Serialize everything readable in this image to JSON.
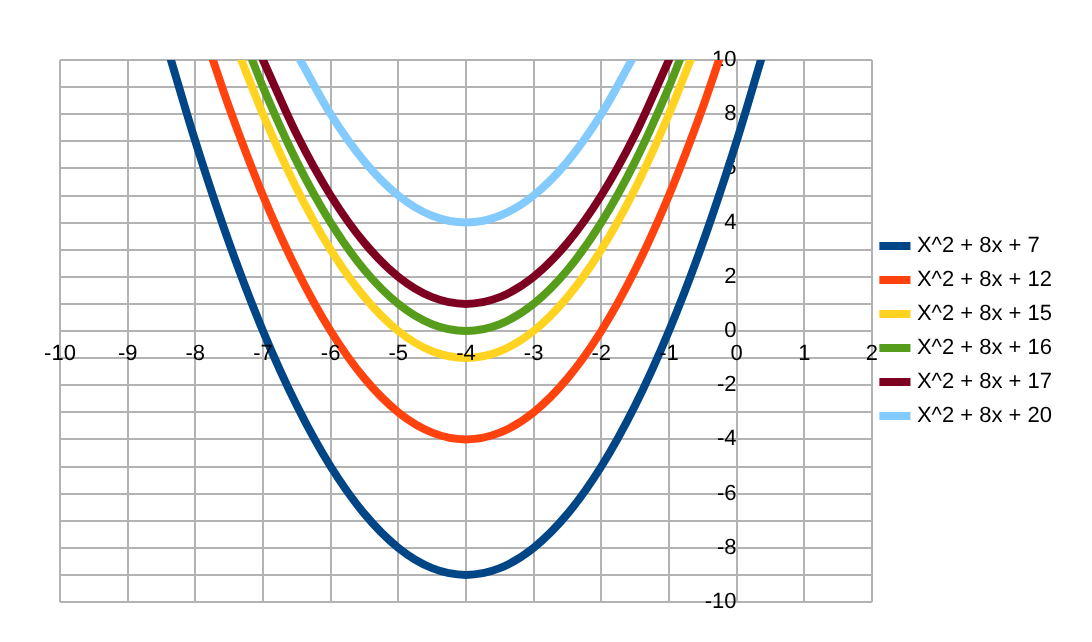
{
  "chart_data": {
    "type": "line",
    "xlim": [
      -10,
      2
    ],
    "xticks": [
      -10,
      -9,
      -8,
      -7,
      -6,
      -5,
      -4,
      -3,
      -2,
      -1,
      0,
      1,
      2
    ],
    "ylim": [
      -10,
      10
    ],
    "yticks": [
      -10,
      {
        "value": -9,
        "label": null
      },
      -8,
      {
        "value": -7,
        "label": null
      },
      -6,
      {
        "value": -5,
        "label": null
      },
      -4,
      {
        "value": -3,
        "label": null
      },
      -2,
      {
        "value": -1,
        "label": null
      },
      0,
      {
        "value": 1,
        "label": null
      },
      2,
      {
        "value": 3,
        "label": null
      },
      4,
      {
        "value": 5,
        "label": null
      },
      6,
      {
        "value": 7,
        "label": null
      },
      8,
      {
        "value": 9,
        "label": null
      },
      10
    ],
    "grid": true,
    "legend": "right",
    "marker": "none",
    "line_style": "solid",
    "series": [
      {
        "name": "X^2 + 8x + 7",
        "color": "#004586",
        "x": [
          -8.36,
          -8,
          -7.5,
          -7,
          -6.5,
          -6,
          -5.5,
          -5,
          -4.5,
          -4,
          -3.5,
          -3,
          -2.5,
          -2,
          -1.5,
          -1,
          -0.5,
          0,
          0.36
        ],
        "values": [
          10,
          7,
          3.25,
          0,
          -2.75,
          -5,
          -6.75,
          -8,
          -8.75,
          -9,
          -8.75,
          -8,
          -6.75,
          -5,
          -2.75,
          0,
          3.25,
          7,
          10
        ]
      },
      {
        "name": "X^2 + 8x + 12",
        "color": "#ff420e",
        "x": [
          -7.74,
          -7.5,
          -7,
          -6.5,
          -6,
          -5.5,
          -5,
          -4.5,
          -4,
          -3.5,
          -3,
          -2.5,
          -2,
          -1.5,
          -1,
          -0.5,
          -0.26
        ],
        "values": [
          10,
          8.25,
          5,
          2.25,
          0,
          -1.75,
          -3,
          -3.75,
          -4,
          -3.75,
          -3,
          -1.75,
          0,
          2.25,
          5,
          8.25,
          10
        ]
      },
      {
        "name": "X^2 + 8x + 15",
        "color": "#ffd320",
        "x": [
          -7.32,
          -7,
          -6.5,
          -6,
          -5.5,
          -5,
          -4.5,
          -4,
          -3.5,
          -3,
          -2.5,
          -2,
          -1.5,
          -1,
          -0.68
        ],
        "values": [
          10,
          8,
          5.25,
          3,
          1.25,
          0,
          -0.75,
          -1,
          -0.75,
          0,
          1.25,
          3,
          5.25,
          8,
          10
        ]
      },
      {
        "name": "X^2 + 8x + 16",
        "color": "#579d1c",
        "x": [
          -7.16,
          -7,
          -6.5,
          -6,
          -5.5,
          -5,
          -4.5,
          -4,
          -3.5,
          -3,
          -2.5,
          -2,
          -1.5,
          -1,
          -0.84
        ],
        "values": [
          10,
          9,
          6.25,
          4,
          2.25,
          1,
          0.25,
          0,
          0.25,
          1,
          2.25,
          4,
          6.25,
          9,
          10
        ]
      },
      {
        "name": "X^2 + 8x + 17",
        "color": "#7e0021",
        "x": [
          -7,
          -6.5,
          -6,
          -5.5,
          -5,
          -4.5,
          -4,
          -3.5,
          -3,
          -2.5,
          -2,
          -1.5,
          -1
        ],
        "values": [
          10,
          7.25,
          5,
          3.25,
          2,
          1.25,
          1,
          1.25,
          2,
          3.25,
          5,
          7.25,
          10
        ]
      },
      {
        "name": "X^2 + 8x + 20",
        "color": "#83caff",
        "x": [
          -6.45,
          -6,
          -5.5,
          -5,
          -4.5,
          -4,
          -3.5,
          -3,
          -2.5,
          -2,
          -1.55
        ],
        "values": [
          10,
          8,
          6.25,
          5,
          4.25,
          4,
          4.25,
          5,
          6.25,
          8,
          10
        ]
      }
    ]
  }
}
